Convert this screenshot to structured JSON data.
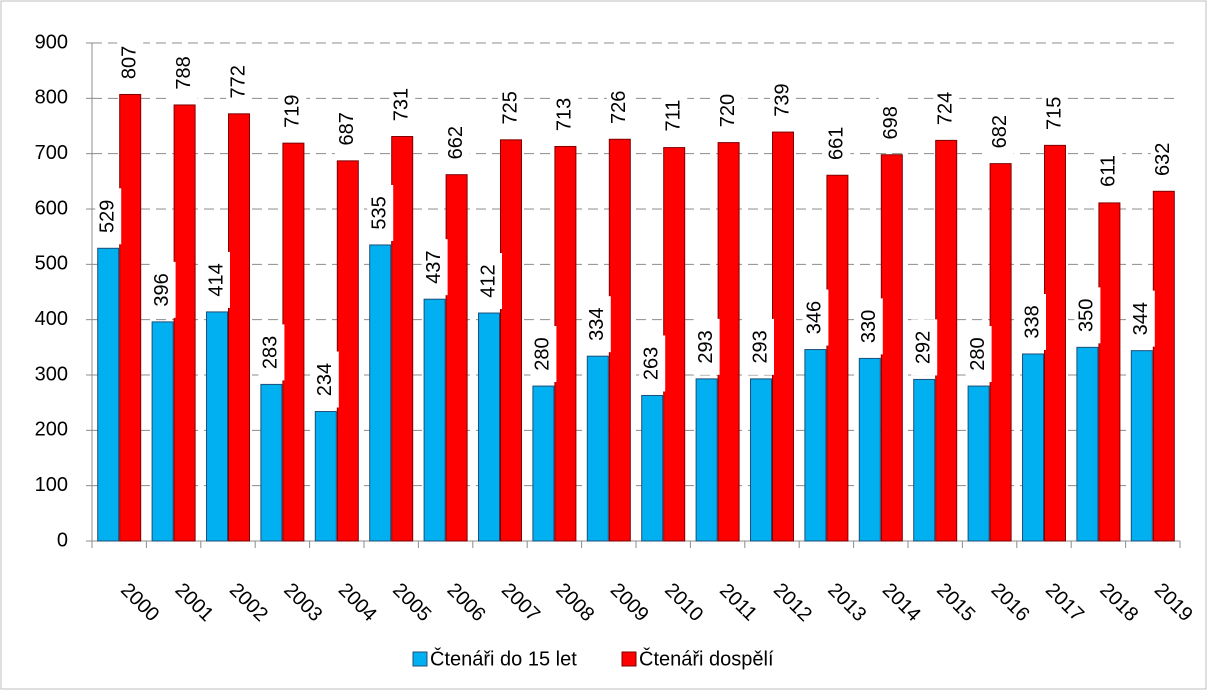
{
  "chart_data": {
    "type": "bar",
    "categories": [
      "2000",
      "2001",
      "2002",
      "2003",
      "2004",
      "2005",
      "2006",
      "2007",
      "2008",
      "2009",
      "2010",
      "2011",
      "2012",
      "2013",
      "2014",
      "2015",
      "2016",
      "2017",
      "2018",
      "2019"
    ],
    "series": [
      {
        "name": "Čtenáři do 15 let",
        "color": "#00b0f0",
        "values": [
          529,
          396,
          414,
          283,
          234,
          535,
          437,
          412,
          280,
          334,
          263,
          293,
          293,
          346,
          330,
          292,
          280,
          338,
          350,
          344
        ]
      },
      {
        "name": "Čtenáři dospělí",
        "color": "#ff0000",
        "values": [
          807,
          788,
          772,
          719,
          687,
          731,
          662,
          725,
          713,
          726,
          711,
          720,
          739,
          661,
          698,
          724,
          682,
          715,
          611,
          632
        ]
      }
    ],
    "ylim": [
      0,
      900
    ],
    "yticks": [
      0,
      100,
      200,
      300,
      400,
      500,
      600,
      700,
      800,
      900
    ],
    "grid": true,
    "legend": "bottom"
  }
}
